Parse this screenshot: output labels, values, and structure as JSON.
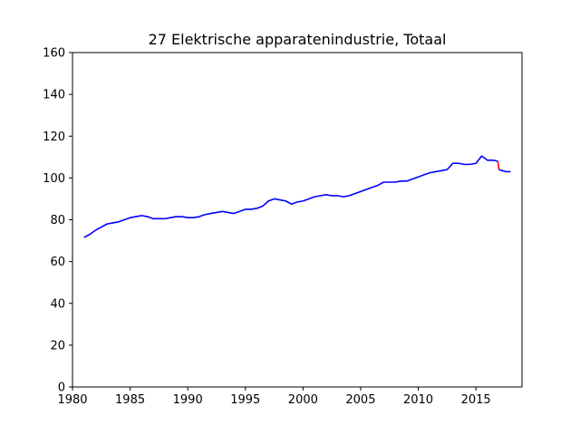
{
  "chart_data": {
    "type": "line",
    "title": "27 Elektrische apparatenindustrie, Totaal",
    "xlabel": "",
    "ylabel": "",
    "xlim": [
      1980,
      2019
    ],
    "ylim": [
      0,
      160
    ],
    "xticks": [
      1980,
      1985,
      1990,
      1995,
      2000,
      2005,
      2010,
      2015
    ],
    "yticks": [
      0,
      20,
      40,
      60,
      80,
      100,
      120,
      140,
      160
    ],
    "grid": false,
    "legend": "none",
    "series": [
      {
        "color": "#0000ff",
        "x": [
          1981.0,
          1981.5,
          1982.0,
          1982.5,
          1983.0,
          1983.5,
          1984.0,
          1984.5,
          1985.0,
          1985.5,
          1986.0,
          1986.5,
          1987.0,
          1987.5,
          1988.0,
          1988.5,
          1989.0,
          1989.5,
          1990.0,
          1990.5,
          1991.0,
          1991.5,
          1992.0,
          1992.5,
          1993.0,
          1993.5,
          1994.0,
          1994.5,
          1995.0,
          1995.5,
          1996.0,
          1996.5,
          1997.0,
          1997.5,
          1998.0,
          1998.5,
          1999.0,
          1999.5,
          2000.0,
          2000.5,
          2001.0,
          2001.5,
          2002.0,
          2002.5,
          2003.0,
          2003.5,
          2004.0,
          2004.5,
          2005.0,
          2005.5,
          2006.0,
          2006.5,
          2007.0,
          2007.5,
          2008.0,
          2008.5,
          2009.0,
          2009.5,
          2010.0,
          2010.5,
          2011.0,
          2011.5,
          2012.0,
          2012.5,
          2013.0,
          2013.5,
          2014.0,
          2014.5,
          2015.0,
          2015.5,
          2016.0,
          2016.5,
          2016.9
        ],
        "y": [
          71.5,
          73.0,
          75.0,
          76.5,
          78.0,
          78.5,
          79.0,
          80.0,
          81.0,
          81.5,
          82.0,
          81.5,
          80.5,
          80.5,
          80.5,
          81.0,
          81.5,
          81.5,
          81.0,
          81.0,
          81.5,
          82.5,
          83.0,
          83.5,
          84.0,
          83.5,
          83.0,
          84.0,
          85.0,
          85.0,
          85.5,
          86.5,
          89.0,
          90.0,
          89.5,
          89.0,
          87.5,
          88.5,
          89.0,
          90.0,
          91.0,
          91.5,
          92.0,
          91.5,
          91.5,
          91.0,
          91.5,
          92.5,
          93.5,
          94.5,
          95.5,
          96.5,
          98.0,
          98.0,
          98.0,
          98.5,
          98.5,
          99.5,
          100.5,
          101.5,
          102.5,
          103.0,
          103.5,
          104.0,
          107.0,
          107.0,
          106.5,
          106.5,
          107.0,
          110.5,
          108.5,
          108.5,
          108.0
        ]
      },
      {
        "color": "#ff0000",
        "x": [
          2016.9,
          2016.95,
          2017.0
        ],
        "y": [
          108.0,
          106.0,
          104.0
        ]
      },
      {
        "color": "#0000ff",
        "x": [
          2017.0,
          2017.3,
          2017.6,
          2018.0
        ],
        "y": [
          104.0,
          103.5,
          103.0,
          103.0
        ]
      }
    ]
  }
}
